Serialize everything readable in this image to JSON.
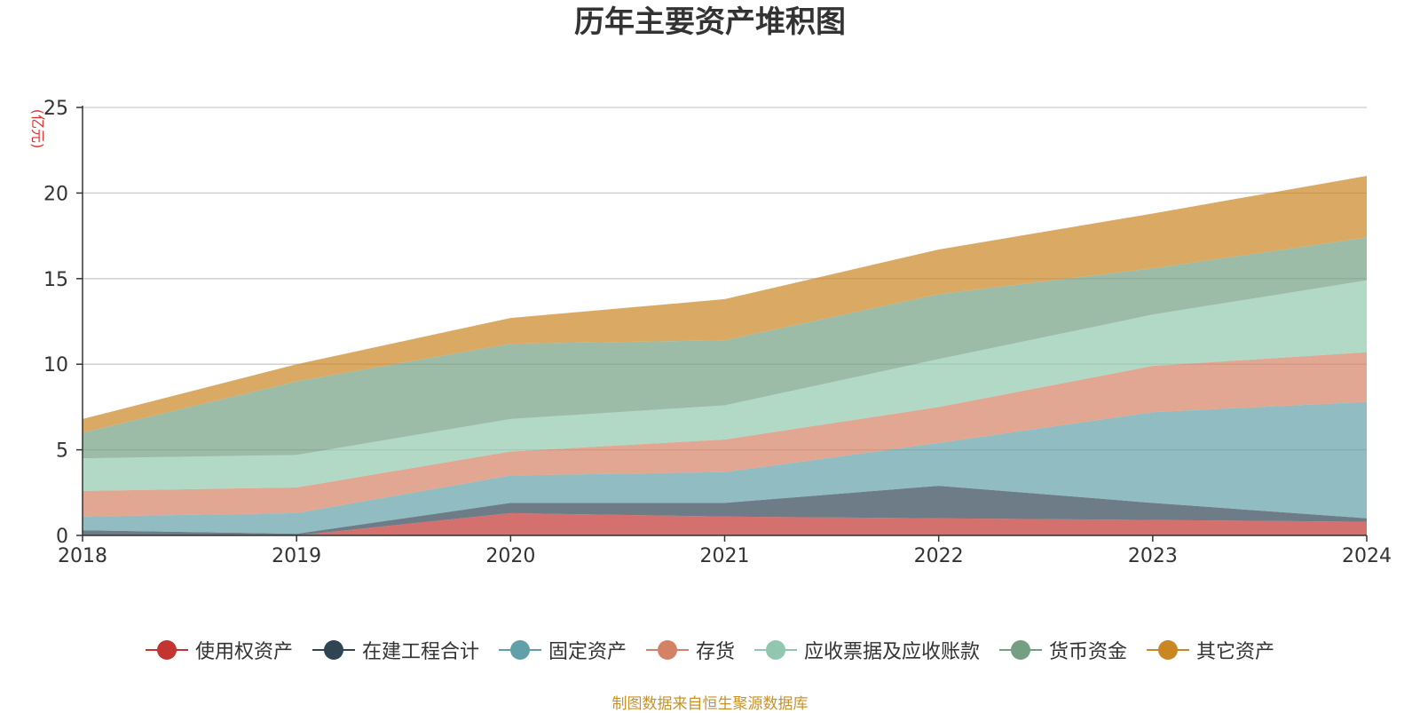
{
  "chart_data": {
    "type": "area",
    "stacked": true,
    "title": "历年主要资产堆积图",
    "ylabel": "(亿元)",
    "xlabel": "",
    "x": [
      "2018",
      "2019",
      "2020",
      "2021",
      "2022",
      "2023",
      "2024"
    ],
    "ylim": [
      0,
      25
    ],
    "yticks": [
      0,
      5,
      10,
      15,
      20,
      25
    ],
    "grid": true,
    "legend_position": "bottom",
    "series": [
      {
        "name": "使用权资产",
        "color": "#c23531",
        "values": [
          0.0,
          0.0,
          1.3,
          1.1,
          1.0,
          0.9,
          0.8
        ]
      },
      {
        "name": "在建工程合计",
        "color": "#2f4554",
        "values": [
          0.3,
          0.1,
          0.6,
          0.8,
          1.9,
          1.0,
          0.2
        ]
      },
      {
        "name": "固定资产",
        "color": "#61a0a8",
        "values": [
          0.8,
          1.2,
          1.6,
          1.8,
          2.5,
          5.3,
          6.8
        ]
      },
      {
        "name": "存货",
        "color": "#d48265",
        "values": [
          1.5,
          1.5,
          1.4,
          1.9,
          2.1,
          2.7,
          2.9
        ]
      },
      {
        "name": "应收票据及应收账款",
        "color": "#91c7ae",
        "values": [
          1.9,
          1.9,
          1.9,
          2.0,
          2.8,
          3.0,
          4.2
        ]
      },
      {
        "name": "货币资金",
        "color": "#749f83",
        "values": [
          1.5,
          4.3,
          4.4,
          3.8,
          3.8,
          2.7,
          2.5
        ]
      },
      {
        "name": "其它资产",
        "color": "#ca8622",
        "values": [
          0.8,
          1.0,
          1.5,
          2.4,
          2.6,
          3.2,
          3.6
        ]
      }
    ],
    "source": "制图数据来自恒生聚源数据库"
  }
}
